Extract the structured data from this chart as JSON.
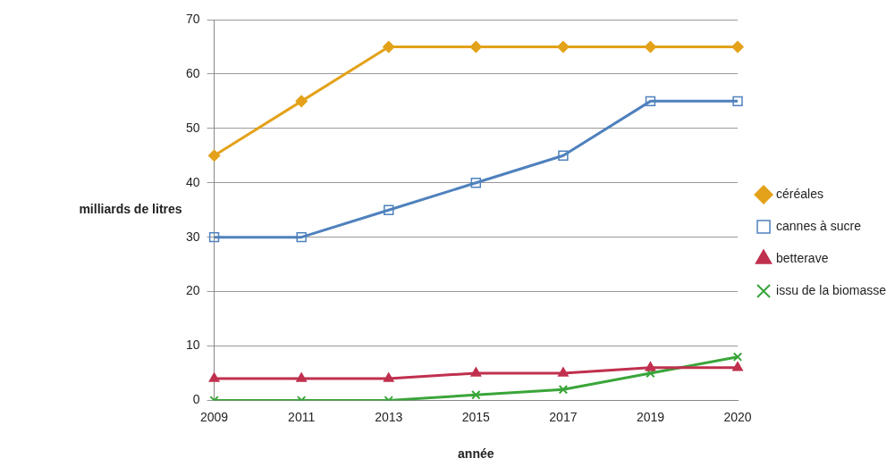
{
  "chart_data": {
    "type": "line",
    "xlabel": "année",
    "ylabel": "milliards de litres",
    "categories": [
      "2009",
      "2011",
      "2013",
      "2015",
      "2017",
      "2019",
      "2020"
    ],
    "ylim": [
      0,
      70
    ],
    "yticks": [
      0,
      10,
      20,
      30,
      40,
      50,
      60,
      70
    ],
    "grid": "y",
    "legend": "right",
    "line_style": "solid",
    "series": [
      {
        "name": "céréales",
        "color": "#e3a21a",
        "marker": "diamond",
        "values": [
          45,
          55,
          65,
          65,
          65,
          65,
          65
        ]
      },
      {
        "name": "cannes à sucre",
        "color": "#4f81bd",
        "marker": "square",
        "values": [
          30,
          30,
          35,
          40,
          45,
          55,
          55
        ]
      },
      {
        "name": "betterave",
        "color": "#c0304e",
        "marker": "triangle",
        "values": [
          4,
          4,
          4,
          5,
          5,
          6,
          6
        ]
      },
      {
        "name": "issu de la biomasse",
        "color": "#3aa53a",
        "marker": "cross",
        "values": [
          0,
          0,
          0,
          1,
          2,
          5,
          8
        ]
      }
    ]
  }
}
